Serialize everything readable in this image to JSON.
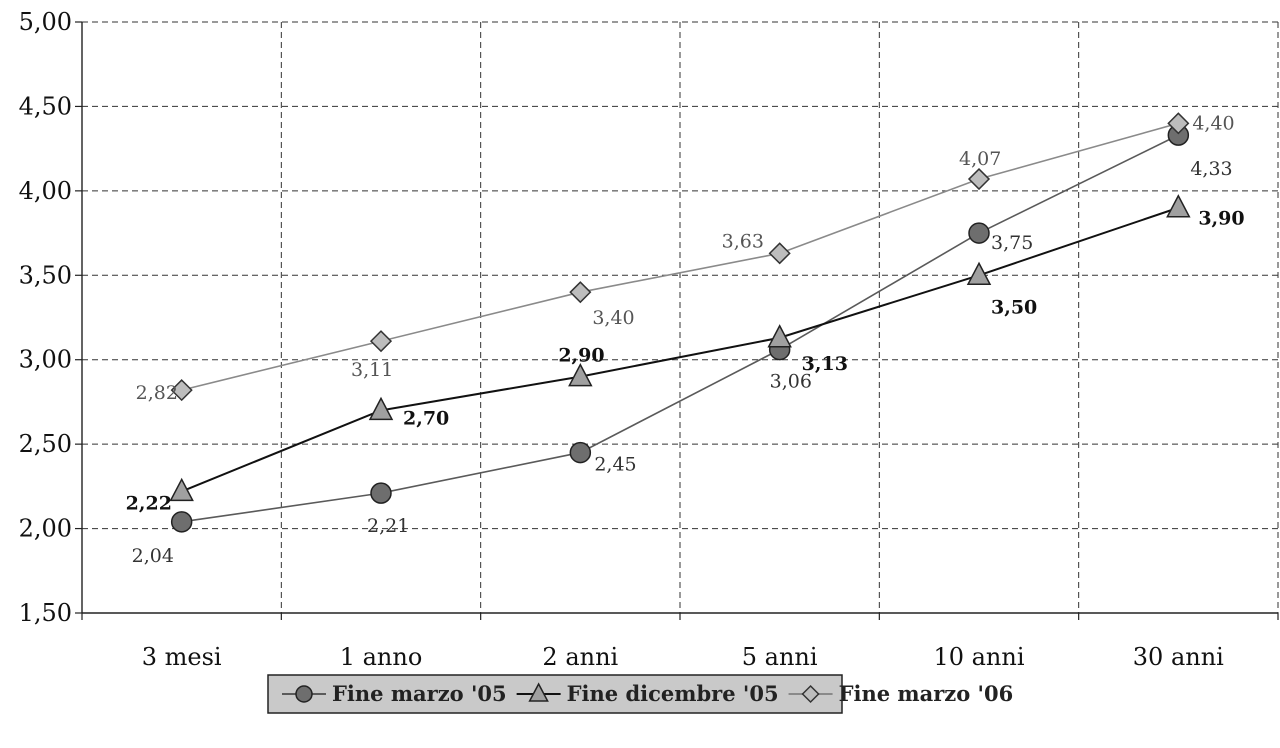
{
  "chart_data": {
    "type": "line",
    "categories": [
      "3 mesi",
      "1 anno",
      "2 anni",
      "5 anni",
      "10 anni",
      "30 anni"
    ],
    "ylim": [
      1.5,
      5.0
    ],
    "yticks": [
      "1,50",
      "2,00",
      "2,50",
      "3,00",
      "3,50",
      "4,00",
      "4,50",
      "5,00"
    ],
    "grid": true,
    "legend_position": "bottom",
    "series": [
      {
        "name": "Fine marzo '05",
        "marker": "circle",
        "values": [
          2.04,
          2.21,
          2.45,
          3.06,
          3.75,
          4.33
        ],
        "labels": [
          "2,04",
          "2,21",
          "2,45",
          "3,06",
          "3,75",
          "4,33"
        ],
        "line_color": "#5a5a5a",
        "marker_color": "#6e6e6e",
        "label_color": "#333333"
      },
      {
        "name": "Fine dicembre '05",
        "marker": "triangle",
        "values": [
          2.22,
          2.7,
          2.9,
          3.13,
          3.5,
          3.9
        ],
        "labels": [
          "2,22",
          "2,70",
          "2,90",
          "3,13",
          "3,50",
          "3,90"
        ],
        "line_color": "#111111",
        "marker_color": "#a0a0a0",
        "label_color": "#111111"
      },
      {
        "name": "Fine marzo '06",
        "marker": "diamond",
        "values": [
          2.82,
          3.11,
          3.4,
          3.63,
          4.07,
          4.4
        ],
        "labels": [
          "2,82",
          "3,11",
          "3,40",
          "3,63",
          "4,07",
          "4,40"
        ],
        "line_color": "#8a8a8a",
        "marker_color": "#bdbdbd",
        "label_color": "#555555"
      }
    ]
  }
}
